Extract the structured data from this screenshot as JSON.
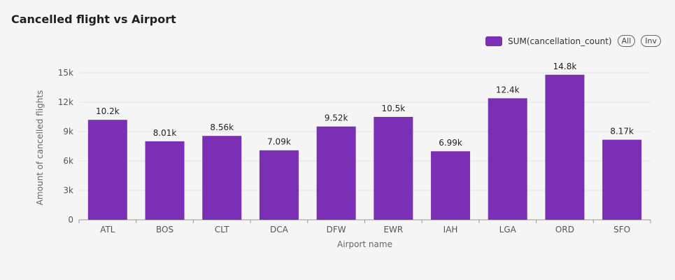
{
  "title": "Cancelled flight vs Airport",
  "legend": {
    "series_label": "SUM(cancellation_count)",
    "all_label": "All",
    "inv_label": "Inv",
    "color": "#7b2fb5"
  },
  "chart_data": {
    "type": "bar",
    "categories": [
      "ATL",
      "BOS",
      "CLT",
      "DCA",
      "DFW",
      "EWR",
      "IAH",
      "LGA",
      "ORD",
      "SFO"
    ],
    "series": [
      {
        "name": "SUM(cancellation_count)",
        "values": [
          10200,
          8010,
          8560,
          7090,
          9520,
          10500,
          6990,
          12400,
          14800,
          8170
        ]
      }
    ],
    "data_labels": [
      "10.2k",
      "8.01k",
      "8.56k",
      "7.09k",
      "9.52k",
      "10.5k",
      "6.99k",
      "12.4k",
      "14.8k",
      "8.17k"
    ],
    "xlabel": "Airport name",
    "ylabel": "Amount of cancelled flights",
    "ylim": [
      0,
      15000
    ],
    "yticks": [
      0,
      3000,
      6000,
      9000,
      12000,
      15000
    ],
    "ytick_labels": [
      "0",
      "3k",
      "6k",
      "9k",
      "12k",
      "15k"
    ],
    "grid": true,
    "legend_position": "top-right",
    "bar_color": "#7b2fb5"
  }
}
